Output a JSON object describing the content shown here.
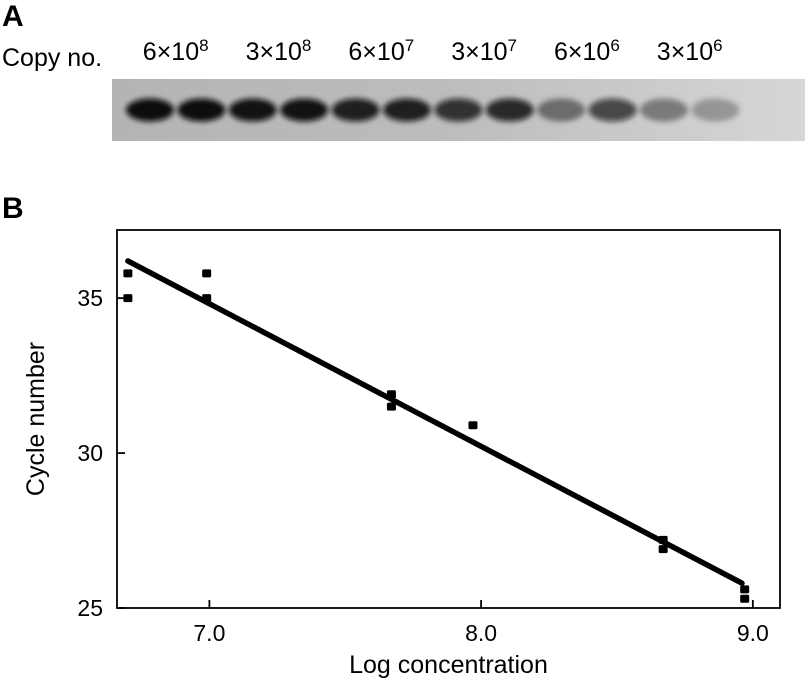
{
  "panel_a": {
    "letter": "A",
    "copy_label": "Copy no.",
    "lanes": [
      {
        "base": "6×10",
        "exp": "8",
        "band_intensity": 1.0
      },
      {
        "base": "6×10",
        "exp": "8",
        "band_intensity": 1.0
      },
      {
        "base": "3×10",
        "exp": "8",
        "band_intensity": 0.97
      },
      {
        "base": "3×10",
        "exp": "8",
        "band_intensity": 0.97
      },
      {
        "base": "6×10",
        "exp": "7",
        "band_intensity": 0.9
      },
      {
        "base": "6×10",
        "exp": "7",
        "band_intensity": 0.9
      },
      {
        "base": "3×10",
        "exp": "7",
        "band_intensity": 0.8
      },
      {
        "base": "3×10",
        "exp": "7",
        "band_intensity": 0.85
      },
      {
        "base": "6×10",
        "exp": "6",
        "band_intensity": 0.45
      },
      {
        "base": "6×10",
        "exp": "6",
        "band_intensity": 0.7
      },
      {
        "base": "3×10",
        "exp": "6",
        "band_intensity": 0.4
      },
      {
        "base": "3×10",
        "exp": "6",
        "band_intensity": 0.28
      }
    ]
  },
  "panel_b": {
    "letter": "B",
    "chart_data": {
      "type": "scatter",
      "xlabel": "Log concentration",
      "ylabel": "Cycle number",
      "xlim": [
        6.66,
        9.1
      ],
      "ylim": [
        25,
        37.2
      ],
      "xticks": [
        7.0,
        8.0,
        9.0
      ],
      "xtick_labels": [
        "7.0",
        "8.0",
        "9.0"
      ],
      "yticks": [
        25,
        30,
        35
      ],
      "ytick_labels": [
        "25",
        "30",
        "35"
      ],
      "grid": false,
      "points": [
        {
          "x": 6.7,
          "y": 35.8
        },
        {
          "x": 6.7,
          "y": 35.0
        },
        {
          "x": 6.99,
          "y": 35.8
        },
        {
          "x": 6.99,
          "y": 35.0
        },
        {
          "x": 7.67,
          "y": 31.9
        },
        {
          "x": 7.67,
          "y": 31.5
        },
        {
          "x": 7.97,
          "y": 30.9
        },
        {
          "x": 8.67,
          "y": 27.2
        },
        {
          "x": 8.67,
          "y": 26.9
        },
        {
          "x": 8.97,
          "y": 25.6
        },
        {
          "x": 8.97,
          "y": 25.3
        }
      ],
      "fit_line": {
        "x": [
          6.7,
          8.96
        ],
        "y": [
          36.2,
          25.8
        ]
      }
    }
  }
}
